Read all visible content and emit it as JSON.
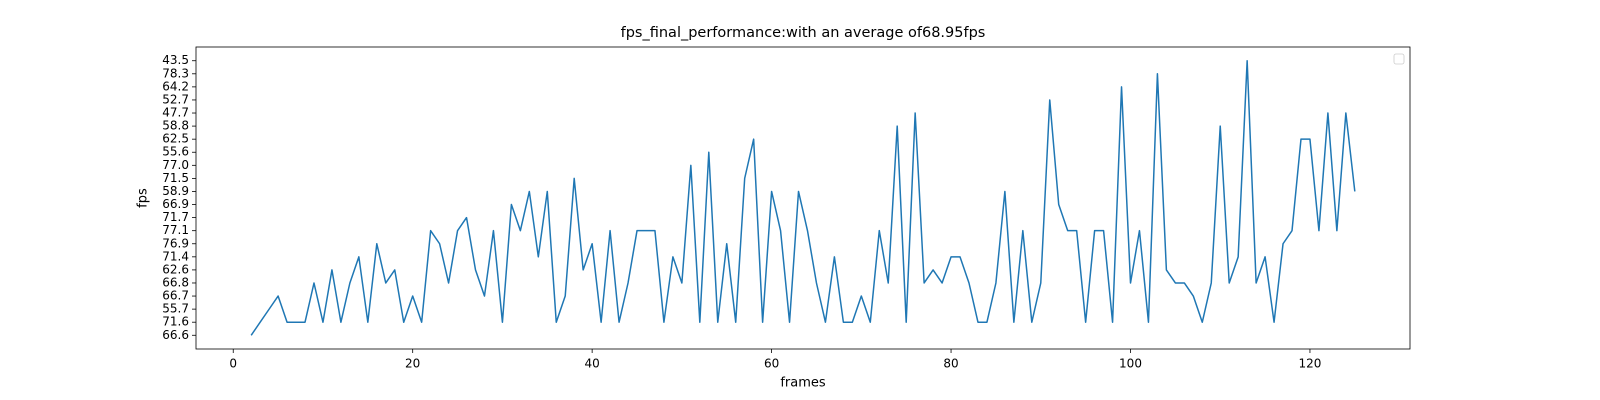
{
  "chart_data": {
    "type": "line",
    "title": "fps_final_performance:with an average of68.95fps",
    "x_label": "frames",
    "y_label": "fps",
    "x": [
      2,
      3,
      4,
      5,
      6,
      7,
      8,
      9,
      10,
      11,
      12,
      13,
      14,
      15,
      16,
      17,
      18,
      19,
      20,
      21,
      22,
      23,
      24,
      25,
      26,
      27,
      28,
      29,
      30,
      31,
      32,
      33,
      34,
      35,
      36,
      37,
      38,
      39,
      40,
      41,
      42,
      43,
      44,
      45,
      46,
      47,
      48,
      49,
      50,
      51,
      52,
      53,
      54,
      55,
      56,
      57,
      58,
      59,
      60,
      61,
      62,
      63,
      64,
      65,
      66,
      67,
      68,
      69,
      70,
      71,
      72,
      73,
      74,
      75,
      76,
      77,
      78,
      79,
      80,
      81,
      82,
      83,
      84,
      85,
      86,
      87,
      88,
      89,
      90,
      91,
      92,
      93,
      94,
      95,
      96,
      97,
      98,
      99,
      100,
      101,
      102,
      103,
      104,
      105,
      106,
      107,
      108,
      109,
      110,
      111,
      112,
      113,
      114,
      115,
      116,
      117,
      118,
      119,
      120,
      121,
      122,
      123,
      124,
      125
    ],
    "series": [
      {
        "color": "#1f77b4",
        "values": [
          66.6,
          71.6,
          55.7,
          66.7,
          71.6,
          71.6,
          71.6,
          66.8,
          71.6,
          62.6,
          71.6,
          66.8,
          71.4,
          71.6,
          76.9,
          66.8,
          62.6,
          71.6,
          66.7,
          71.6,
          77.1,
          76.9,
          66.8,
          77.1,
          71.7,
          62.6,
          66.7,
          77.1,
          71.6,
          66.9,
          77.1,
          58.9,
          71.4,
          58.9,
          71.6,
          66.7,
          71.5,
          62.6,
          76.9,
          71.6,
          77.1,
          71.6,
          66.8,
          77.1,
          77.1,
          77.1,
          71.6,
          71.4,
          66.8,
          77,
          71.6,
          55.6,
          71.6,
          76.9,
          71.6,
          71.5,
          62.5,
          71.6,
          58.9,
          77.1,
          71.6,
          58.9,
          77.1,
          66.8,
          71.6,
          71.4,
          71.6,
          71.6,
          66.7,
          71.6,
          77.1,
          66.8,
          58.8,
          71.6,
          47.7,
          66.8,
          62.6,
          66.8,
          71.4,
          71.4,
          66.8,
          71.6,
          71.6,
          66.8,
          58.9,
          71.6,
          77.1,
          71.6,
          66.8,
          52.7,
          66.9,
          77.1,
          77.1,
          71.6,
          77.1,
          77.1,
          71.6,
          64.2,
          66.8,
          77.1,
          71.6,
          78.3,
          62.6,
          66.8,
          66.8,
          66.7,
          71.6,
          66.8,
          58.8,
          66.8,
          71.4,
          43.5,
          66.8,
          71.4,
          71.6,
          76.9,
          77.1,
          62.5,
          62.5,
          77.1,
          47.7,
          77.1,
          47.7,
          58.9
        ]
      }
    ],
    "xlim": [
      -4.15,
      131.15
    ],
    "xticks": [
      0,
      20,
      40,
      60,
      80,
      100,
      120
    ],
    "yticks": [
      66.6,
      71.6,
      55.7,
      66.7,
      66.8,
      62.6,
      71.4,
      76.9,
      77.1,
      71.7,
      66.9,
      58.9,
      71.5,
      {
        "value": 77,
        "label": "77.0"
      },
      55.6,
      62.5,
      58.8,
      47.7,
      52.7,
      64.2,
      78.3,
      43.5
    ],
    "legend": "upper right"
  }
}
